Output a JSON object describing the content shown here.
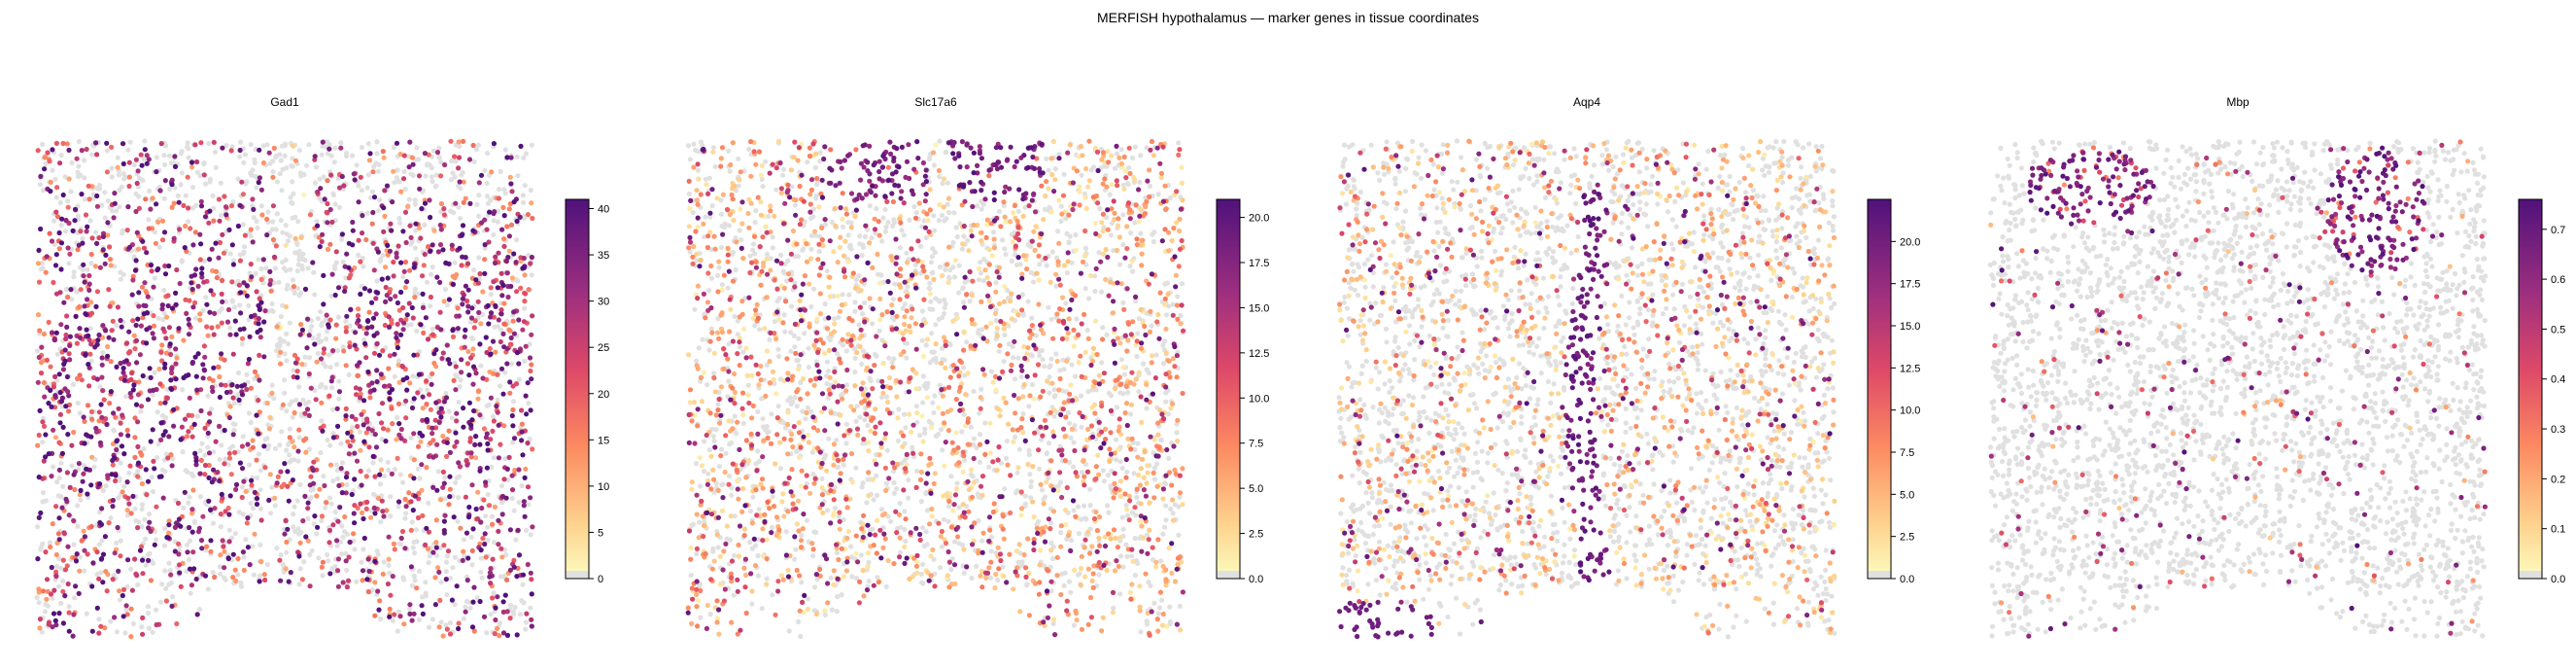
{
  "figure": {
    "title": "MERFISH hypothalamus — marker genes in tissue coordinates"
  },
  "chart_data": [
    {
      "type": "scatter",
      "title": "Gad1",
      "colormap": "magma_r",
      "zero_color": "#e0e0e0",
      "colorbar": {
        "min": 0,
        "max": 41,
        "ticks": [
          0,
          5,
          10,
          15,
          20,
          25,
          30,
          35,
          40
        ]
      },
      "pattern": "gad1",
      "n_points": 3600
    },
    {
      "type": "scatter",
      "title": "Slc17a6",
      "colormap": "magma_r",
      "zero_color": "#e0e0e0",
      "colorbar": {
        "min": 0,
        "max": 21,
        "ticks": [
          "0.0",
          "2.5",
          "5.0",
          "7.5",
          "10.0",
          "12.5",
          "15.0",
          "17.5",
          "20.0"
        ]
      },
      "pattern": "slc17a6",
      "n_points": 3600
    },
    {
      "type": "scatter",
      "title": "Aqp4",
      "colormap": "magma_r",
      "zero_color": "#e0e0e0",
      "colorbar": {
        "min": 0,
        "max": 22.5,
        "ticks": [
          "0.0",
          "2.5",
          "5.0",
          "7.5",
          "10.0",
          "12.5",
          "15.0",
          "17.5",
          "20.0"
        ]
      },
      "pattern": "aqp4",
      "n_points": 3600
    },
    {
      "type": "scatter",
      "title": "Mbp",
      "colormap": "magma_r",
      "zero_color": "#e0e0e0",
      "colorbar": {
        "min": 0,
        "max": 0.76,
        "ticks": [
          "0.0",
          "0.1",
          "0.2",
          "0.3",
          "0.4",
          "0.5",
          "0.6",
          "0.7"
        ]
      },
      "pattern": "mbp",
      "n_points": 3600
    }
  ]
}
